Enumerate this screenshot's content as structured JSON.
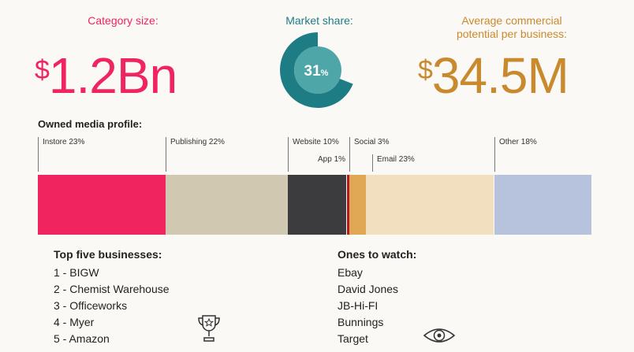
{
  "stats": {
    "category_size": {
      "label": "Category size:",
      "currency": "$",
      "value": "1.2Bn",
      "color": "#f0245f"
    },
    "market_share": {
      "label": "Market share:",
      "value": "31",
      "unit": "%",
      "fraction": 0.31,
      "color": "#1e7c85",
      "light_color": "#4ea6a9"
    },
    "avg_potential": {
      "label_line1": "Average commercial",
      "label_line2": "potential per business:",
      "currency": "$",
      "value": "34.5M",
      "color": "#c98a2e"
    }
  },
  "owned_media": {
    "heading": "Owned media profile:",
    "segments": [
      {
        "label": "Instore 23%",
        "share": 23,
        "color": "#f0245f"
      },
      {
        "label": "Publishing 22%",
        "share": 22,
        "color": "#d1c8b2"
      },
      {
        "label": "Website 10%",
        "share": 10.5,
        "color": "#3c3c3f"
      },
      {
        "label": "App 1%",
        "share": 0.5,
        "color": "#b11a24"
      },
      {
        "label": "Social 3%",
        "share": 3,
        "color": "#e0a854"
      },
      {
        "label": "Email 23%",
        "share": 23,
        "color": "#f2dfc0"
      },
      {
        "label": "Other 18%",
        "share": 17.5,
        "color": "#b7c3dc"
      }
    ]
  },
  "top_five": {
    "heading": "Top five businesses:",
    "items": [
      "1 - BIGW",
      "2 - Chemist Warehouse",
      "3 - Officeworks",
      "4 - Myer",
      "5 - Amazon"
    ]
  },
  "ones_to_watch": {
    "heading": "Ones to watch:",
    "items": [
      "Ebay",
      "David Jones",
      "JB-Hi-FI",
      "Bunnings",
      "Target"
    ]
  },
  "icons": {
    "trophy": "trophy-icon",
    "eye": "eye-icon"
  }
}
